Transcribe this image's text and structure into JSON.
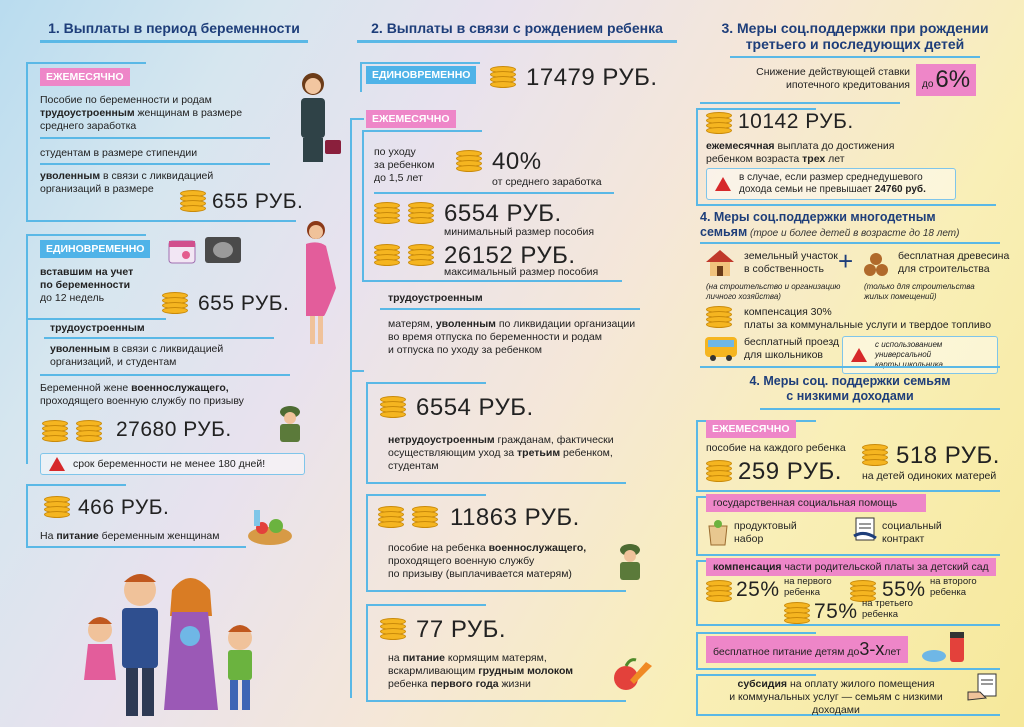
{
  "col1": {
    "title": "1. Выплаты в период беременности",
    "monthly_tag": "ЕЖЕМЕСЯЧНО",
    "p1_line1": "Пособие по беременности и родам",
    "p1_b": "трудоустроенным",
    "p1_line2": " женщинам в размере",
    "p1_line3": "среднего заработка",
    "p2": "студентам в размере стипендии",
    "p3_b": "уволенным",
    "p3_line1": " в связи с ликвидацией",
    "p3_line2": "организаций в размере",
    "amount1": "655 РУБ.",
    "once_tag": "ЕДИНОВРЕМЕННО",
    "q1_b1": "вставшим на учет",
    "q1_b2": "по беременности",
    "q1_line3": "до 12 недель",
    "amount2": "655 РУБ.",
    "q2_b": "трудоустроенным",
    "q3_b": "уволенным",
    "q3_line1": " в связи с ликвидацией",
    "q3_line2": "организаций, и студентам",
    "q4_line1": "Беременной жене ",
    "q4_b": "военнослужащего,",
    "q4_line2": "проходящего военную службу по призыву",
    "amount3": "27680 РУБ.",
    "warning": "срок беременности не менее 180 дней!",
    "amount4": "466 РУБ.",
    "food_pre": "На ",
    "food_b": "питание",
    "food_post": " беременным женщинам"
  },
  "col2": {
    "title": "2. Выплаты в связи с рождением ребенка",
    "once_tag": "ЕДИНОВРЕМЕННО",
    "amount_once": "17479 РУБ.",
    "monthly_tag": "ЕЖЕМЕСЯЧНО",
    "care1": "по уходу",
    "care2": "за ребенком",
    "care3": "до 1,5 лет",
    "pct": "40%",
    "pct_note": "от среднего заработка",
    "min_amt": "6554 РУБ.",
    "min_note": "минимальный размер пособия",
    "max_amt": "26152 РУБ.",
    "max_note": "максимальный размер пособия",
    "employed_b": "трудоустроенным",
    "m_line1a": "матерям, ",
    "m_line1b": "уволенным",
    "m_line1c": " по ликвидации организации",
    "m_line2": "во время отпуска по беременности и родам",
    "m_line3": "и отпуска по уходу за ребенком",
    "amt3": "6554 РУБ.",
    "u_b": "нетрудоустроенным",
    "u_line1": " гражданам, фактически",
    "u_line2a": "осуществляющим уход за ",
    "u_line2b": "третьим",
    "u_line2c": " ребенком,",
    "u_line3": "студентам",
    "amt4": "11863 РУБ.",
    "s_line1a": "пособие на ребенка ",
    "s_line1b": "военнослужащего,",
    "s_line2": "проходящего военную службу",
    "s_line3": "по призыву (выплачивается матерям)",
    "amt5": "77 РУБ.",
    "f_line1a": "на ",
    "f_line1b": "питание",
    "f_line1c": " кормящим матерям,",
    "f_line2a": "вскармливающим ",
    "f_line2b": "грудным молоком",
    "f_line3a": "ребенка ",
    "f_line3b": "первого года",
    "f_line3c": " жизни"
  },
  "col3": {
    "title1": "3. Меры соц.поддержки при рождении",
    "title2": "третьего и последующих детей",
    "mort1": "Снижение действующей ставки",
    "mort2": "ипотечного кредитования",
    "mort_pre": "до",
    "mort_pct": "6%",
    "amt1": "10142 РУБ.",
    "m_b": "ежемесячная",
    "m_line1": " выплата до достижения",
    "m_line2a": "ребенком возраста ",
    "m_line2b": "трех",
    "m_line2c": " лет",
    "w_line1": "в случае, если размер среднедушевого",
    "w_line2a": "дохода семьи не превышает ",
    "w_line2b": "24760 руб.",
    "title4a": "4. Меры соц.поддержки многодетным",
    "title4b": "семьям",
    "title4c": " (трое и более детей в возрасте до 18 лет)",
    "land1": "земельный участок",
    "land2": "в собственность",
    "land_note1": "(на строительство и организацию",
    "land_note2": "личного хозяйства)",
    "wood1": "бесплатная древесина",
    "wood2": "для строительства",
    "wood_note1": "(только для строительства",
    "wood_note2": "жилых помещений)",
    "comp1": "компенсация 30%",
    "comp2": "платы за коммунальные услуги и твердое топливо",
    "bus1": "бесплатный проезд",
    "bus2": "для школьников",
    "bus_w1": "с использованием универсальной",
    "bus_w2": "карты школьника",
    "title5a": "4. Меры соц. поддержки семьям",
    "title5b": "с низкими доходами",
    "monthly_tag": "ЕЖЕМЕСЯЧНО",
    "each_child": "пособие на каждого ребенка",
    "amt259": "259 РУБ.",
    "amt518": "518 РУБ.",
    "single": "на детей одиноких матерей",
    "gov_help": "государственная социальная помощь",
    "food1": "продуктовый",
    "food2": "набор",
    "soc1": "социальный",
    "soc2": "контракт",
    "kg_b": "компенсация",
    "kg_rest": " части родительской платы за  детский сад",
    "p25": "25%",
    "p25a": "на первого",
    "p25b": "ребенка",
    "p55": "55%",
    "p55a": "на второго",
    "p55b": "ребенка",
    "p75": "75%",
    "p75a": "на третьего",
    "p75b": "ребенка",
    "free_food": "бесплатное питание детям до ",
    "free_age": "3-х",
    "free_years": " лет",
    "sub_b": "субсидия",
    "sub_line1": " на оплату жилого помещения",
    "sub_line2": "и коммунальных услуг — семьям с низкими доходами"
  }
}
